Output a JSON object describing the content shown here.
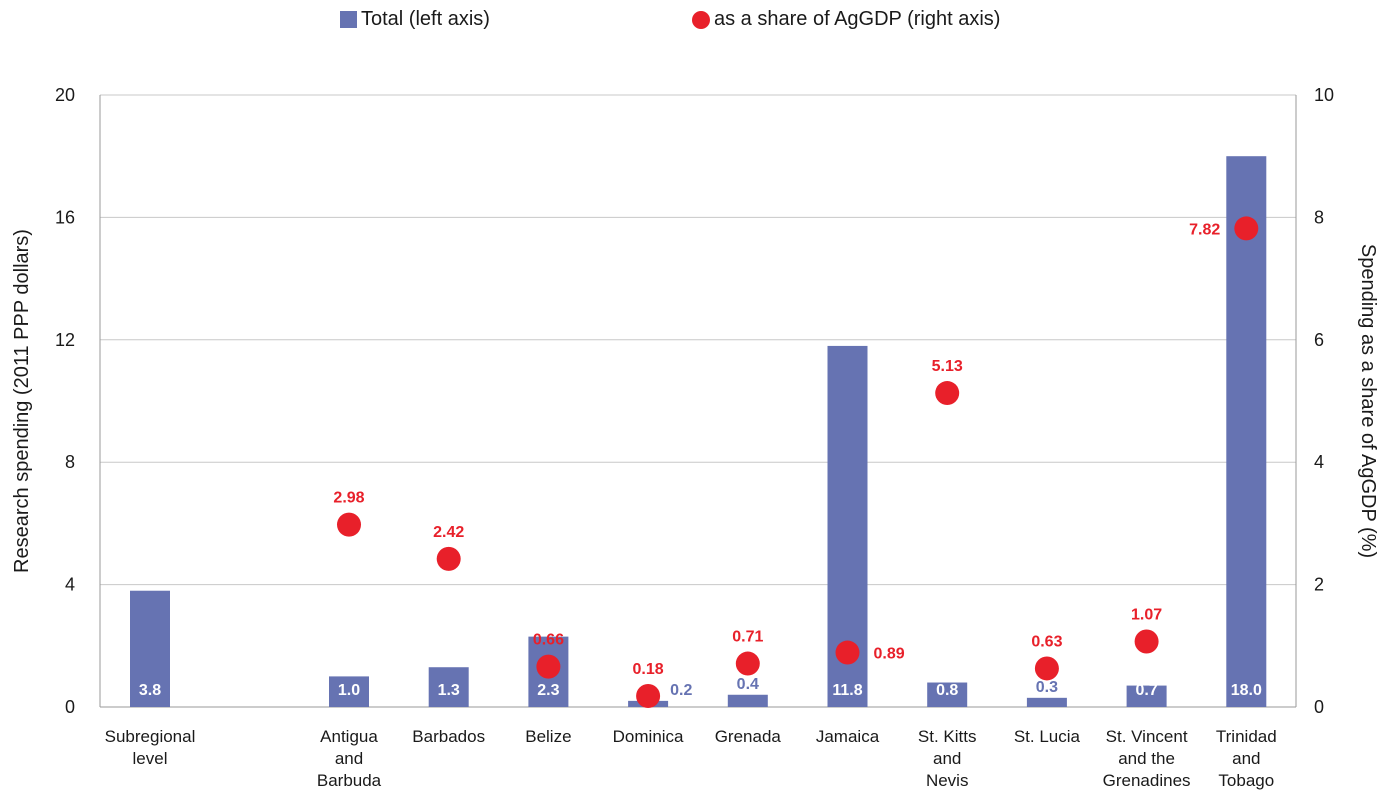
{
  "legend": {
    "bars_label": "Total (left axis)",
    "dots_label": "as a share of AgGDP (right axis)"
  },
  "colors": {
    "bar": "#6673b2",
    "dot": "#e8202a",
    "grid": "#c8c8c8",
    "axis": "#9a9a9a"
  },
  "chart_data": {
    "type": "bar",
    "categories": [
      [
        "Subregional",
        "level"
      ],
      [
        "Antigua",
        "and",
        "Barbuda"
      ],
      [
        "Barbados"
      ],
      [
        "Belize"
      ],
      [
        "Dominica"
      ],
      [
        "Grenada"
      ],
      [
        "Jamaica"
      ],
      [
        "St. Kitts",
        "and",
        "Nevis"
      ],
      [
        "St. Lucia"
      ],
      [
        "St. Vincent",
        "and the",
        "Grenadines"
      ],
      [
        "Trinidad",
        "and",
        "Tobago"
      ]
    ],
    "series": [
      {
        "name": "Total (left axis)",
        "type": "bar",
        "axis": "left",
        "values": [
          3.8,
          1.0,
          1.3,
          2.3,
          0.2,
          0.4,
          11.8,
          0.8,
          0.3,
          0.7,
          18.0
        ],
        "labels": [
          "3.8",
          "1.0",
          "1.3",
          "2.3",
          "0.2",
          "0.4",
          "11.8",
          "0.8",
          "0.3",
          "0.7",
          "18.0"
        ],
        "label_inside": [
          true,
          true,
          true,
          true,
          false,
          false,
          true,
          true,
          false,
          true,
          true
        ]
      },
      {
        "name": "as a share of AgGDP (right axis)",
        "type": "scatter",
        "axis": "right",
        "values": [
          null,
          2.98,
          2.42,
          0.66,
          0.18,
          0.71,
          0.89,
          5.13,
          0.63,
          1.07,
          7.82
        ],
        "labels": [
          "",
          "2.98",
          "2.42",
          "0.66",
          "0.18",
          "0.71",
          "0.89",
          "5.13",
          "0.63",
          "1.07",
          "7.82"
        ],
        "label_position": [
          "",
          "above",
          "above",
          "above",
          "above",
          "above",
          "right",
          "above",
          "above",
          "above",
          "left"
        ]
      }
    ],
    "ylabel_left": "Research spending (2011 PPP dollars)",
    "ylabel_right": "Spending as a share of AgGDP (%)",
    "ylim_left": [
      0,
      20
    ],
    "ylim_right": [
      0,
      10
    ],
    "yticks_left": [
      "0",
      "4",
      "8",
      "12",
      "16",
      "20"
    ],
    "yticks_right": [
      "0",
      "2",
      "4",
      "6",
      "8",
      "10"
    ],
    "grid": true,
    "legend_position": "top"
  }
}
